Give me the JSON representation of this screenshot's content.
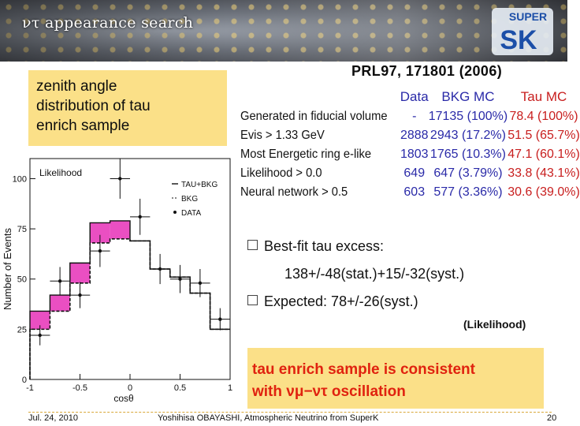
{
  "header": {
    "title": "ντ appearance search",
    "logo_text": "SUPER",
    "logo_letters": "SK"
  },
  "zenith_box": {
    "text_lines": [
      "zenith angle",
      "distribution of tau",
      "enrich sample"
    ]
  },
  "reference": "PRL97, 171801 (2006)",
  "selection_table": {
    "columns": [
      "Data",
      "BKG MC",
      "Tau MC"
    ],
    "rows": [
      {
        "label": "Generated in fiducial volume",
        "data": "-",
        "bkg": "17135 (100%)",
        "tau": "78.4 (100%)"
      },
      {
        "label": "Evis > 1.33 GeV",
        "data": "2888",
        "bkg": "2943 (17.2%)",
        "tau": "51.5 (65.7%)"
      },
      {
        "label": "Most Energetic ring e-like",
        "data": "1803",
        "bkg": "1765 (10.3%)",
        "tau": "47.1 (60.1%)"
      },
      {
        "label": "Likelihood > 0.0",
        "data": "649",
        "bkg": "647 (3.79%)",
        "tau": "33.8 (43.1%)"
      },
      {
        "label": "Neural network > 0.5",
        "data": "603",
        "bkg": "577 (3.36%)",
        "tau": "30.6 (39.0%)"
      }
    ]
  },
  "bullets": {
    "best_fit": "Best-fit tau excess:",
    "best_fit_value": "138+/-48(stat.)+15/-32(syst.)",
    "expected": "Expected: 78+/-26(syst.)",
    "method": "(Likelihood)"
  },
  "conclusion": {
    "line1": "tau enrich sample is consistent",
    "line2": "with νμ−ντ oscillation"
  },
  "footer": {
    "date": "Jul. 24, 2010",
    "author": "Yoshihisa OBAYASHI, Atmospheric Neutrino from SuperK",
    "page": "20"
  },
  "colors": {
    "tau_band": "#ea4fc2",
    "highlight_box": "#fbe088",
    "conclusion_text": "#e0220f",
    "table_blue": "#2a2aa8",
    "table_red": "#c81e1e"
  },
  "chart_data": {
    "type": "histogram",
    "title": "Likelihood",
    "xlabel": "cosθ",
    "ylabel": "Number of Events",
    "xlim": [
      -1,
      1
    ],
    "ylim": [
      0,
      110
    ],
    "x_ticks": [
      "-1",
      "-0.5",
      "0",
      "0.5",
      "1"
    ],
    "y_ticks": [
      "0",
      "25",
      "50",
      "75",
      "100"
    ],
    "legend": [
      "TAU+BKG",
      "BKG",
      "DATA"
    ],
    "bins": [
      {
        "x0": -1.0,
        "x1": -0.8,
        "bkg": 25,
        "tau_bkg": 34
      },
      {
        "x0": -0.8,
        "x1": -0.6,
        "bkg": 34,
        "tau_bkg": 42
      },
      {
        "x0": -0.6,
        "x1": -0.4,
        "bkg": 48,
        "tau_bkg": 58
      },
      {
        "x0": -0.4,
        "x1": -0.2,
        "bkg": 68,
        "tau_bkg": 78
      },
      {
        "x0": -0.2,
        "x1": 0.0,
        "bkg": 70,
        "tau_bkg": 79
      },
      {
        "x0": 0.0,
        "x1": 0.2,
        "bkg": 69,
        "tau_bkg": 69
      },
      {
        "x0": 0.2,
        "x1": 0.4,
        "bkg": 55,
        "tau_bkg": 55
      },
      {
        "x0": 0.4,
        "x1": 0.6,
        "bkg": 51,
        "tau_bkg": 51
      },
      {
        "x0": 0.6,
        "x1": 0.8,
        "bkg": 43,
        "tau_bkg": 43
      },
      {
        "x0": 0.8,
        "x1": 1.0,
        "bkg": 25,
        "tau_bkg": 25
      }
    ],
    "data_points": [
      {
        "x": -0.9,
        "y": 22,
        "err": 5
      },
      {
        "x": -0.7,
        "y": 49,
        "err": 7
      },
      {
        "x": -0.5,
        "y": 42,
        "err": 6.5
      },
      {
        "x": -0.3,
        "y": 64,
        "err": 8
      },
      {
        "x": -0.1,
        "y": 100,
        "err": 10
      },
      {
        "x": 0.1,
        "y": 81,
        "err": 9
      },
      {
        "x": 0.3,
        "y": 55,
        "err": 7.5
      },
      {
        "x": 0.5,
        "y": 50,
        "err": 7
      },
      {
        "x": 0.7,
        "y": 48,
        "err": 7
      },
      {
        "x": 0.9,
        "y": 30,
        "err": 5.5
      }
    ]
  }
}
